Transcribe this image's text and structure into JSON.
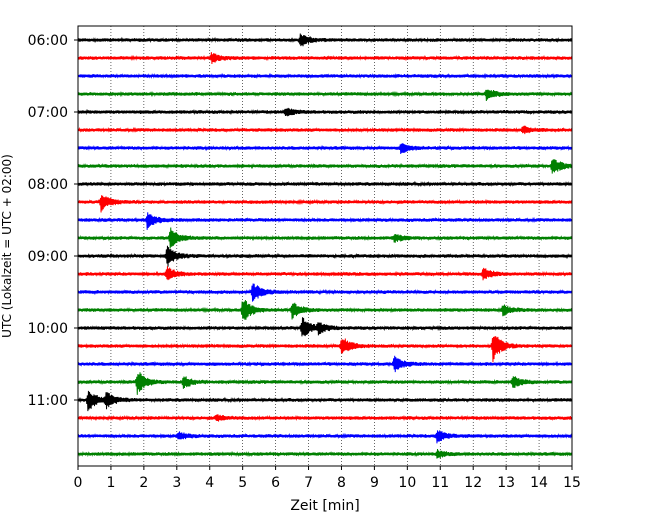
{
  "chart_data": {
    "type": "line",
    "title": "",
    "xlabel": "Zeit  [min]",
    "ylabel": "UTC (Lokalzeit = UTC + 02:00)",
    "xlim": [
      0,
      15
    ],
    "x_ticks": [
      "0",
      "1",
      "2",
      "3",
      "4",
      "5",
      "6",
      "7",
      "8",
      "9",
      "10",
      "11",
      "12",
      "13",
      "14",
      "15"
    ],
    "y_ticks": [
      "06:00",
      "07:00",
      "08:00",
      "09:00",
      "10:00",
      "11:00"
    ],
    "grid": "vertical dotted",
    "trace_minutes": 15,
    "traces": [
      {
        "start": "06:00",
        "color": "#000000",
        "events": [
          [
            6.75,
            7
          ]
        ]
      },
      {
        "start": "06:15",
        "color": "#ff0000",
        "events": [
          [
            4.05,
            5
          ]
        ]
      },
      {
        "start": "06:30",
        "color": "#0000ff",
        "events": []
      },
      {
        "start": "06:45",
        "color": "#008000",
        "events": [
          [
            12.4,
            6
          ]
        ]
      },
      {
        "start": "07:00",
        "color": "#000000",
        "events": [
          [
            6.3,
            4
          ]
        ]
      },
      {
        "start": "07:15",
        "color": "#ff0000",
        "events": [
          [
            13.5,
            4
          ]
        ]
      },
      {
        "start": "07:30",
        "color": "#0000ff",
        "events": [
          [
            9.8,
            5
          ]
        ]
      },
      {
        "start": "07:45",
        "color": "#008000",
        "events": [
          [
            14.4,
            9
          ]
        ]
      },
      {
        "start": "08:00",
        "color": "#000000",
        "events": []
      },
      {
        "start": "08:15",
        "color": "#ff0000",
        "events": [
          [
            0.7,
            9
          ]
        ]
      },
      {
        "start": "08:30",
        "color": "#0000ff",
        "events": [
          [
            2.1,
            9
          ]
        ]
      },
      {
        "start": "08:45",
        "color": "#008000",
        "events": [
          [
            2.8,
            10
          ],
          [
            9.6,
            4
          ]
        ]
      },
      {
        "start": "09:00",
        "color": "#000000",
        "events": [
          [
            2.7,
            11
          ]
        ]
      },
      {
        "start": "09:15",
        "color": "#ff0000",
        "events": [
          [
            2.7,
            7
          ],
          [
            12.3,
            6
          ]
        ]
      },
      {
        "start": "09:30",
        "color": "#0000ff",
        "events": [
          [
            5.3,
            10
          ]
        ]
      },
      {
        "start": "09:45",
        "color": "#008000",
        "events": [
          [
            5.0,
            13
          ],
          [
            6.5,
            9
          ],
          [
            12.9,
            5
          ]
        ]
      },
      {
        "start": "10:00",
        "color": "#000000",
        "events": [
          [
            6.8,
            11
          ],
          [
            7.3,
            5
          ]
        ]
      },
      {
        "start": "10:15",
        "color": "#ff0000",
        "events": [
          [
            8.0,
            10
          ],
          [
            12.6,
            15
          ]
        ]
      },
      {
        "start": "10:30",
        "color": "#0000ff",
        "events": [
          [
            9.6,
            8
          ]
        ]
      },
      {
        "start": "10:45",
        "color": "#008000",
        "events": [
          [
            1.8,
            12
          ],
          [
            3.2,
            6
          ],
          [
            13.2,
            6
          ]
        ]
      },
      {
        "start": "11:00",
        "color": "#000000",
        "events": [
          [
            0.3,
            11
          ],
          [
            0.85,
            8
          ]
        ]
      },
      {
        "start": "11:15",
        "color": "#ff0000",
        "events": [
          [
            4.2,
            3
          ]
        ]
      },
      {
        "start": "11:30",
        "color": "#0000ff",
        "events": [
          [
            3.05,
            4
          ],
          [
            10.9,
            7
          ]
        ]
      },
      {
        "start": "11:45",
        "color": "#008000",
        "events": [
          [
            10.9,
            4
          ]
        ]
      }
    ]
  }
}
